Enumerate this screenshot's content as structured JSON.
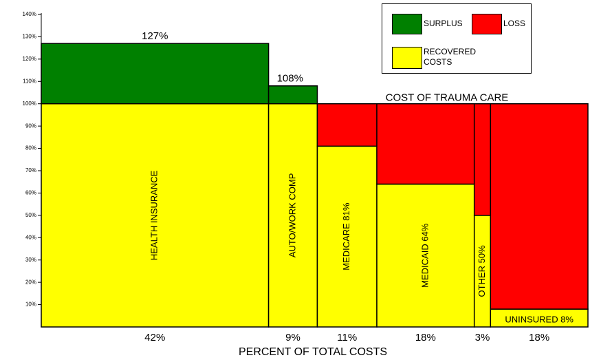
{
  "chart_data": {
    "type": "marimekko",
    "categories": [
      "HEALTH INSURANCE",
      "AUTO/WORK COMP",
      "MEDICARE 81%",
      "MEDICAID 64%",
      "OTHER 50%",
      "UNINSURED 8%"
    ],
    "widths": [
      42,
      9,
      11,
      18,
      3,
      18
    ],
    "width_labels": [
      "42%",
      "9%",
      "11%",
      "18%",
      "3%",
      "18%"
    ],
    "values": [
      127,
      108,
      81,
      64,
      50,
      8
    ],
    "value_labels": [
      "127%",
      "108%",
      null,
      null,
      null,
      null
    ],
    "xlabel": "PERCENT OF TOTAL COSTS",
    "annotation": "COST OF TRAUMA CARE",
    "cost_line": 100,
    "ylim": [
      0,
      140
    ],
    "yticks": [
      {
        "value": 10,
        "label": "10%"
      },
      {
        "value": 20,
        "label": "20%"
      },
      {
        "value": 30,
        "label": "30%"
      },
      {
        "value": 40,
        "label": "40%"
      },
      {
        "value": 50,
        "label": "50%"
      },
      {
        "value": 60,
        "label": "60%"
      },
      {
        "value": 70,
        "label": "70%"
      },
      {
        "value": 80,
        "label": "80%"
      },
      {
        "value": 90,
        "label": "90%"
      },
      {
        "value": 100,
        "label": "100%"
      },
      {
        "value": 110,
        "label": "110%"
      },
      {
        "value": 120,
        "label": "120%"
      },
      {
        "value": 130,
        "label": "130%"
      },
      {
        "value": 140,
        "label": "140%"
      }
    ],
    "legend": [
      {
        "name": "SURPLUS",
        "color": "#008000"
      },
      {
        "name": "LOSS",
        "color": "#ff0000"
      },
      {
        "name": "RECOVERED COSTS",
        "color": "#ffff00"
      }
    ],
    "legend_position": "upper right"
  }
}
